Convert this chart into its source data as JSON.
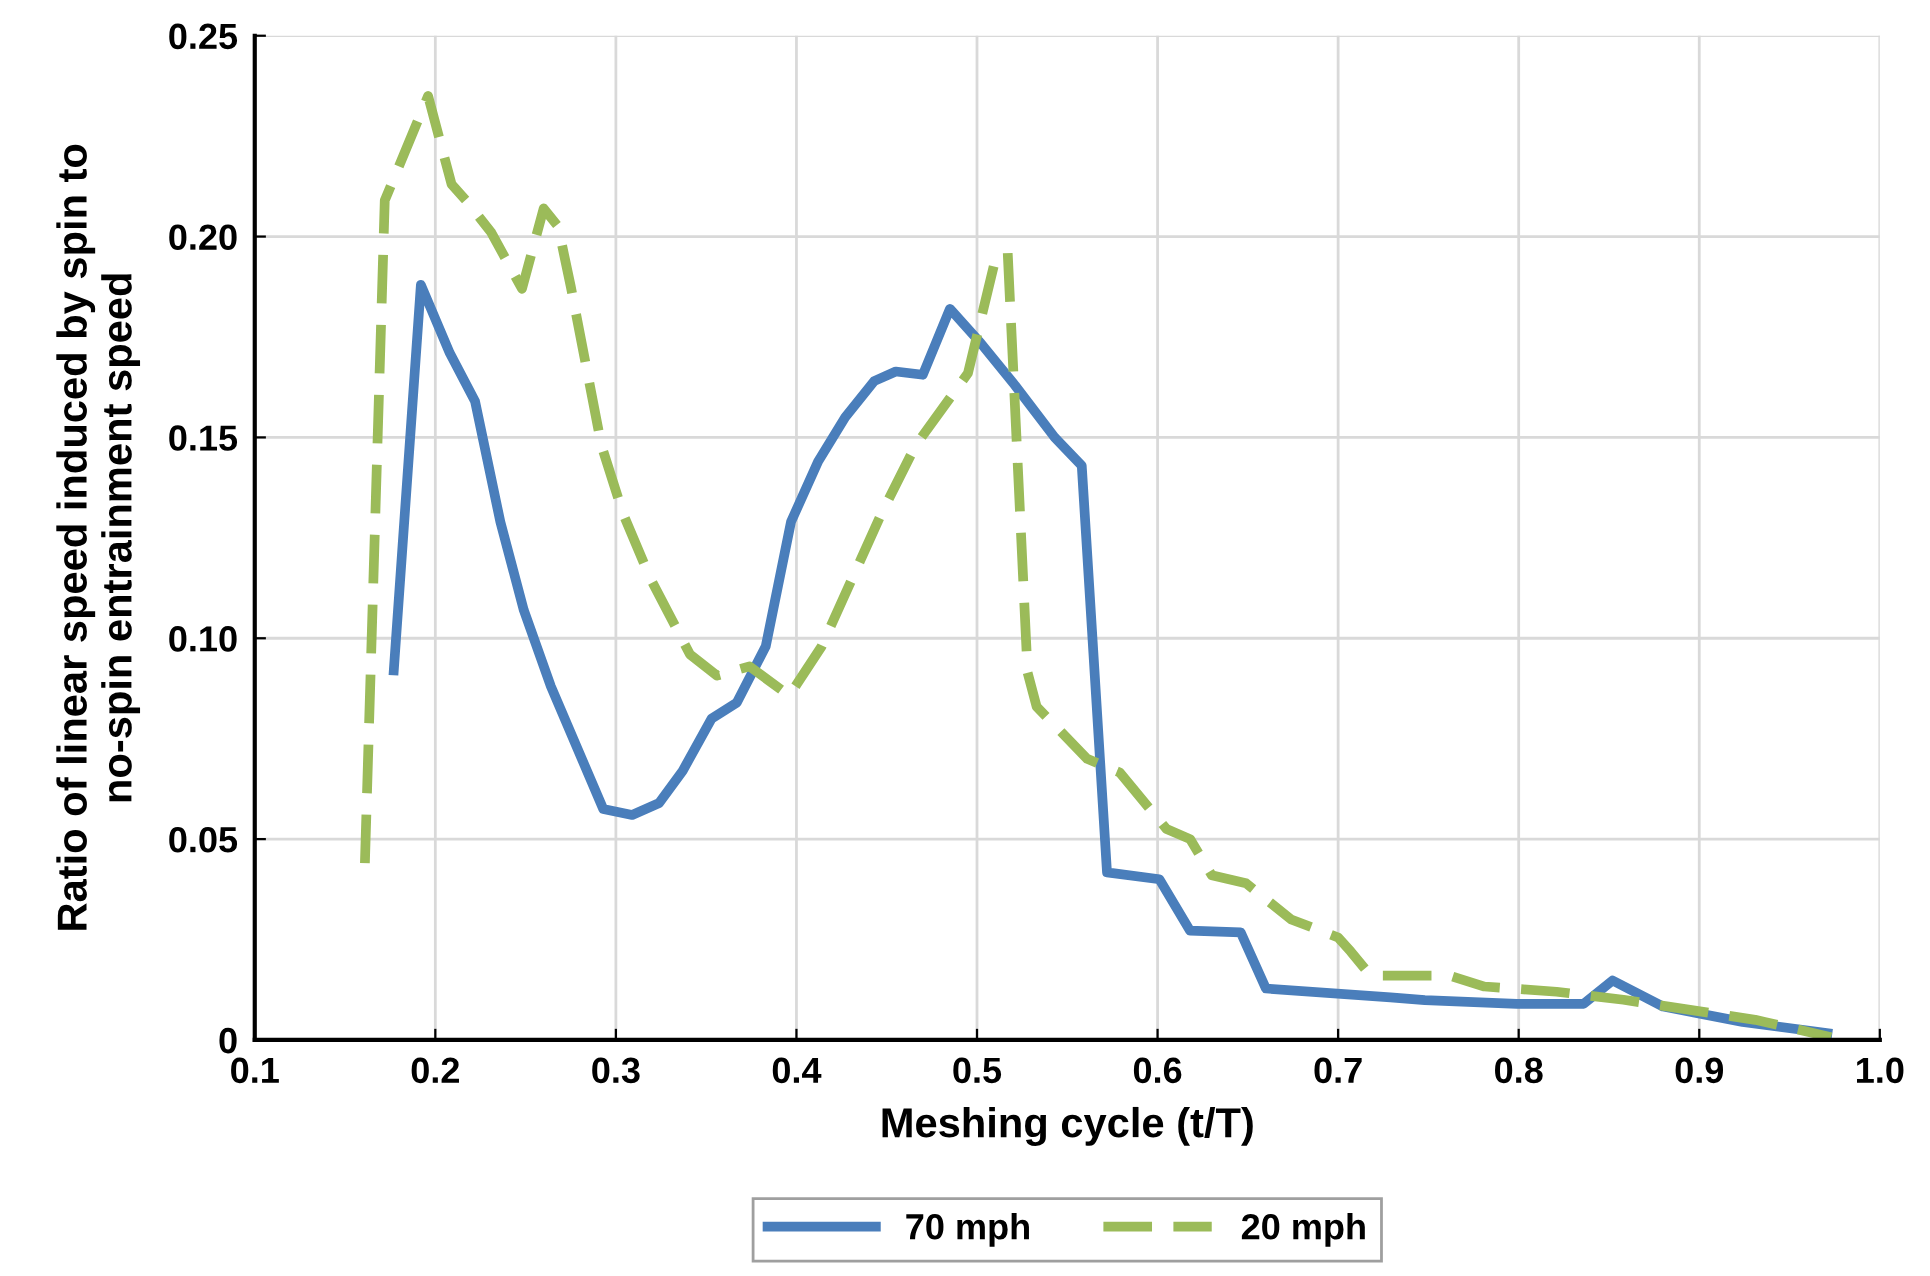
{
  "chart_data": {
    "type": "line",
    "xlabel": "Meshing cycle (t/T)",
    "ylabel": "Ratio of linear speed induced by spin to\nno-spin entrainment speed",
    "xlim": [
      0.1,
      1.0
    ],
    "ylim": [
      0,
      0.25
    ],
    "xticks": [
      {
        "value": 0.1,
        "label": "0.1"
      },
      {
        "value": 0.2,
        "label": "0.2"
      },
      {
        "value": 0.3,
        "label": "0.3"
      },
      {
        "value": 0.4,
        "label": "0.4"
      },
      {
        "value": 0.5,
        "label": "0.5"
      },
      {
        "value": 0.6,
        "label": "0.6"
      },
      {
        "value": 0.7,
        "label": "0.7"
      },
      {
        "value": 0.8,
        "label": "0.8"
      },
      {
        "value": 0.9,
        "label": "0.9"
      },
      {
        "value": 1.0,
        "label": "1.0"
      }
    ],
    "yticks": [
      {
        "value": 0,
        "label": "0"
      },
      {
        "value": 0.05,
        "label": "0.05"
      },
      {
        "value": 0.1,
        "label": "0.10"
      },
      {
        "value": 0.15,
        "label": "0.15"
      },
      {
        "value": 0.2,
        "label": "0.20"
      },
      {
        "value": 0.25,
        "label": "0.25"
      }
    ],
    "grid": true,
    "legend": "bottom",
    "marker": "none",
    "series": [
      {
        "name": "70 mph",
        "color": "#4a7ebb",
        "line_style": "solid",
        "x": [
          0.177,
          0.192,
          0.208,
          0.222,
          0.236,
          0.249,
          0.264,
          0.293,
          0.309,
          0.324,
          0.337,
          0.353,
          0.367,
          0.383,
          0.397,
          0.412,
          0.427,
          0.443,
          0.455,
          0.47,
          0.485,
          0.502,
          0.521,
          0.543,
          0.558,
          0.572,
          0.601,
          0.618,
          0.646,
          0.66,
          0.729,
          0.748,
          0.799,
          0.836,
          0.852,
          0.88,
          0.924,
          0.971
        ],
        "values": [
          0.092,
          0.188,
          0.171,
          0.159,
          0.129,
          0.107,
          0.088,
          0.0575,
          0.056,
          0.059,
          0.067,
          0.08,
          0.084,
          0.098,
          0.129,
          0.144,
          0.155,
          0.164,
          0.1664,
          0.1656,
          0.182,
          0.1735,
          0.163,
          0.15,
          0.143,
          0.0417,
          0.04,
          0.0272,
          0.0268,
          0.0128,
          0.0106,
          0.0099,
          0.009,
          0.009,
          0.0148,
          0.0083,
          0.0045,
          0.0017
        ]
      },
      {
        "name": "20 mph",
        "color": "#9bbb59",
        "line_style": "dashed",
        "x": [
          0.161,
          0.172,
          0.196,
          0.209,
          0.217,
          0.231,
          0.248,
          0.26,
          0.268,
          0.275,
          0.292,
          0.304,
          0.319,
          0.341,
          0.356,
          0.374,
          0.396,
          0.414,
          0.447,
          0.466,
          0.495,
          0.51,
          0.517,
          0.528,
          0.533,
          0.561,
          0.579,
          0.605,
          0.618,
          0.63,
          0.649,
          0.674,
          0.7,
          0.707,
          0.718,
          0.762,
          0.781,
          0.821,
          0.858,
          0.883,
          0.931,
          0.973
        ],
        "values": [
          0.044,
          0.209,
          0.235,
          0.213,
          0.209,
          0.201,
          0.187,
          0.207,
          0.2025,
          0.1876,
          0.148,
          0.131,
          0.115,
          0.096,
          0.0907,
          0.093,
          0.0857,
          0.098,
          0.131,
          0.148,
          0.166,
          0.194,
          0.196,
          0.0915,
          0.083,
          0.07,
          0.0666,
          0.0525,
          0.05,
          0.041,
          0.039,
          0.03,
          0.0255,
          0.022,
          0.016,
          0.016,
          0.0133,
          0.012,
          0.01,
          0.0083,
          0.005,
          0.0007
        ]
      }
    ]
  }
}
